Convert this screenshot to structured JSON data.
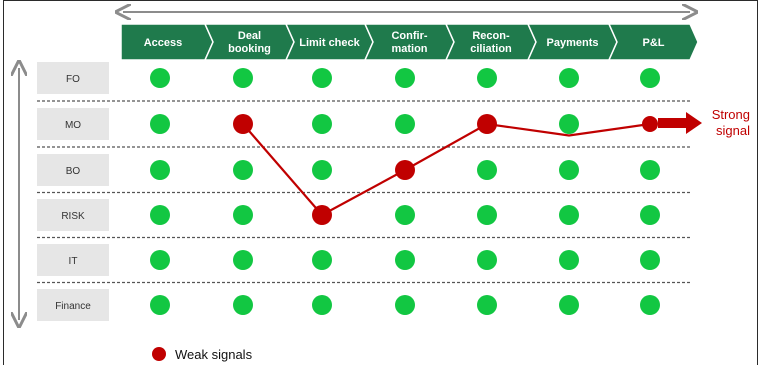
{
  "stages": [
    "Access",
    "Deal\nbooking",
    "Limit check",
    "Confir-\nmation",
    "Recon-\nciliation",
    "Payments",
    "P&L"
  ],
  "rows": [
    "FO",
    "MO",
    "BO",
    "RISK",
    "IT",
    "Finance"
  ],
  "weak_signal_path": [
    {
      "stage": 1,
      "row": 1
    },
    {
      "stage": 2,
      "row": 3
    },
    {
      "stage": 3,
      "row": 2
    },
    {
      "stage": 4,
      "row": 1
    },
    {
      "stage": 5,
      "row": 1.25
    },
    {
      "stage": 6,
      "row": 1
    }
  ],
  "weak_points": [
    {
      "stage": 1,
      "row": 1
    },
    {
      "stage": 2,
      "row": 3
    },
    {
      "stage": 3,
      "row": 2
    },
    {
      "stage": 4,
      "row": 1
    },
    {
      "stage": 6,
      "row": 1
    }
  ],
  "strong_signal_label": [
    "Strong",
    "signal"
  ],
  "legend_label": "Weak signals",
  "colors": {
    "header_green": "#1f7a4c",
    "dot_green": "#12c742",
    "weak_red": "#c00000",
    "row_label_bg": "#e6e6e6",
    "arrow_gray": "#8c8c8c"
  }
}
